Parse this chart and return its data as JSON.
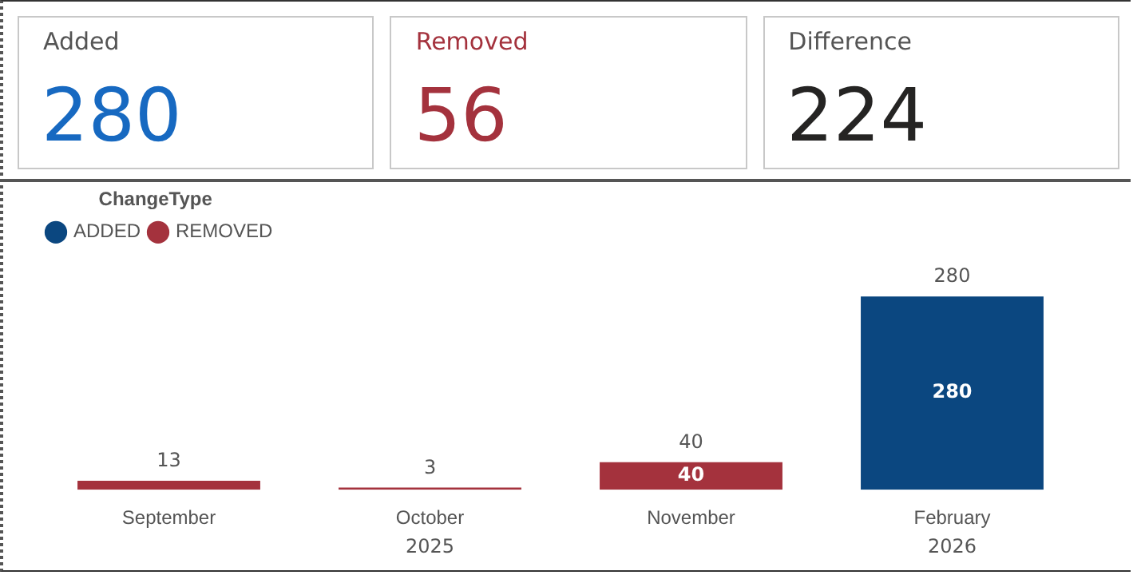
{
  "chart_data": [
    {
      "type": "other",
      "categories": [
        "Added",
        "Removed",
        "Difference"
      ],
      "values": [
        280,
        56,
        224
      ],
      "colors": [
        "#1769c1",
        "#a4323d",
        "#252423"
      ],
      "data_labels": true
    },
    {
      "type": "bar",
      "stacked": true,
      "categories": [
        "September",
        "October",
        "November",
        "February"
      ],
      "series": [
        {
          "name": "ADDED",
          "color": "#0b4780",
          "values": [
            null,
            null,
            null,
            280
          ],
          "value_labels": [
            null,
            null,
            null,
            "280"
          ]
        },
        {
          "name": "REMOVED",
          "color": "#a4323d",
          "values": [
            13,
            3,
            40,
            null
          ],
          "value_labels": [
            null,
            null,
            "40",
            null
          ]
        }
      ],
      "totals": [
        "13",
        "3",
        "40",
        "280"
      ],
      "legend": "top left",
      "legend_title": "ChangeType",
      "annotations": [
        "2025",
        "2026"
      ]
    }
  ]
}
